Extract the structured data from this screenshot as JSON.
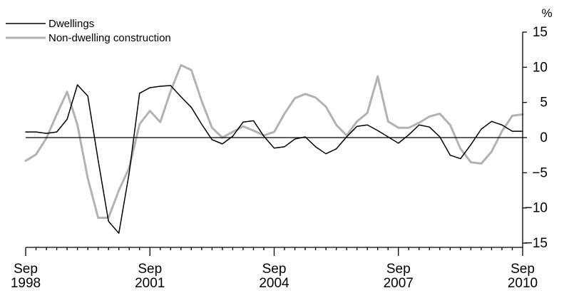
{
  "chart_data": {
    "type": "line",
    "title": "",
    "xlabel": "",
    "ylabel": "",
    "y_unit": "%",
    "ylim": [
      -15,
      15
    ],
    "y_ticks": [
      15,
      10,
      5,
      0,
      -5,
      -10,
      -15
    ],
    "y_tick_labels": [
      "15",
      "10",
      "5",
      "0",
      "-5",
      "-10",
      "-15"
    ],
    "y_axis_side": "right",
    "zero_line": true,
    "grid": false,
    "legend_position": "top-left",
    "x_quarters": [
      "Sep 1998",
      "Dec 1998",
      "Mar 1999",
      "Jun 1999",
      "Sep 1999",
      "Dec 1999",
      "Mar 2000",
      "Jun 2000",
      "Sep 2000",
      "Dec 2000",
      "Mar 2001",
      "Jun 2001",
      "Sep 2001",
      "Dec 2001",
      "Mar 2002",
      "Jun 2002",
      "Sep 2002",
      "Dec 2002",
      "Mar 2003",
      "Jun 2003",
      "Sep 2003",
      "Dec 2003",
      "Mar 2004",
      "Jun 2004",
      "Sep 2004",
      "Dec 2004",
      "Mar 2005",
      "Jun 2005",
      "Sep 2005",
      "Dec 2005",
      "Mar 2006",
      "Jun 2006",
      "Sep 2006",
      "Dec 2006",
      "Mar 2007",
      "Jun 2007",
      "Sep 2007",
      "Dec 2007",
      "Mar 2008",
      "Jun 2008",
      "Sep 2008",
      "Dec 2008",
      "Mar 2009",
      "Jun 2009",
      "Sep 2009",
      "Dec 2009",
      "Mar 2010",
      "Jun 2010",
      "Sep 2010"
    ],
    "x_tick_labels": [
      {
        "line1": "Sep",
        "line2": "1998",
        "index": 0
      },
      {
        "line1": "Sep",
        "line2": "2001",
        "index": 12
      },
      {
        "line1": "Sep",
        "line2": "2004",
        "index": 24
      },
      {
        "line1": "Sep",
        "line2": "2007",
        "index": 36
      },
      {
        "line1": "Sep",
        "line2": "2010",
        "index": 48
      }
    ],
    "series": [
      {
        "name": "Dwellings",
        "color": "#000000",
        "values": [
          0.8,
          0.8,
          0.6,
          0.8,
          2.6,
          7.5,
          5.9,
          -3.2,
          -11.9,
          -13.6,
          -5.0,
          6.3,
          7.1,
          7.3,
          7.4,
          5.8,
          4.3,
          1.9,
          -0.3,
          -0.9,
          0.2,
          2.2,
          2.4,
          0.2,
          -1.5,
          -1.3,
          -0.2,
          0.1,
          -1.3,
          -2.3,
          -1.6,
          0.1,
          1.6,
          1.8,
          1.0,
          0.1,
          -0.8,
          0.4,
          1.8,
          1.5,
          0.1,
          -2.5,
          -3.0,
          -1.0,
          1.2,
          2.3,
          1.8,
          0.9,
          0.9
        ]
      },
      {
        "name": "Non-dwelling construction",
        "color": "#b2b2b2",
        "values": [
          -3.3,
          -2.4,
          -0.1,
          3.3,
          6.5,
          1.8,
          -5.8,
          -11.4,
          -11.4,
          -7.5,
          -4.3,
          1.9,
          3.8,
          2.2,
          6.6,
          10.3,
          9.6,
          5.2,
          1.4,
          0.0,
          0.8,
          1.6,
          1.0,
          0.3,
          0.8,
          3.4,
          5.6,
          6.2,
          5.7,
          4.4,
          1.8,
          0.3,
          2.3,
          3.5,
          8.7,
          2.3,
          1.4,
          1.4,
          2.1,
          3.0,
          3.4,
          1.8,
          -1.6,
          -3.5,
          -3.7,
          -2.0,
          0.9,
          3.1,
          3.3
        ]
      }
    ]
  }
}
